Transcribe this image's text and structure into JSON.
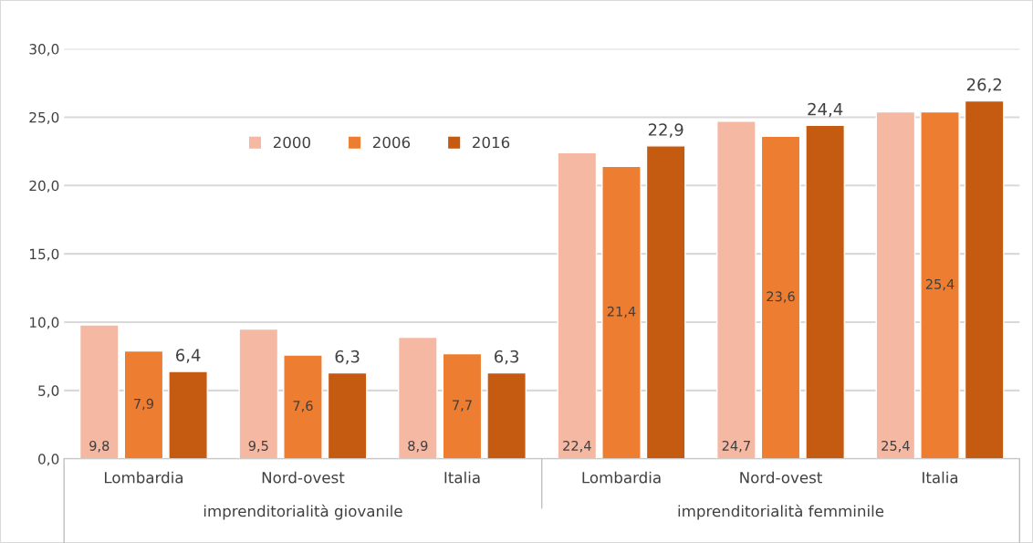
{
  "chart_data": {
    "type": "bar",
    "categories": [
      "Lombardia",
      "Nord-ovest",
      "Italia",
      "Lombardia",
      "Nord-ovest",
      "Italia"
    ],
    "series": [
      {
        "name": "2000",
        "color": "#f4b8a3",
        "values": [
          9.8,
          9.5,
          8.9,
          22.4,
          24.7,
          25.4
        ],
        "value_labels": [
          "9,8",
          "9,5",
          "8,9",
          "22,4",
          "24,7",
          "25,4"
        ]
      },
      {
        "name": "2006",
        "color": "#ed7d31",
        "values": [
          7.9,
          7.6,
          7.7,
          21.4,
          23.6,
          25.4
        ],
        "value_labels": [
          "7,9",
          "7,6",
          "7,7",
          "21,4",
          "23,6",
          "25,4"
        ]
      },
      {
        "name": "2016",
        "color": "#c55a11",
        "values": [
          6.4,
          6.3,
          6.3,
          22.9,
          24.4,
          26.2
        ],
        "value_labels": [
          "6,4",
          "6,3",
          "6,3",
          "22,9",
          "24,4",
          "26,2"
        ]
      }
    ],
    "annotations": [
      "imprenditorialità giovanile",
      "imprenditorialità femminile"
    ],
    "ylim": [
      0,
      30
    ],
    "yticks": [
      {
        "value": 0,
        "label": "0,0"
      },
      {
        "value": 5,
        "label": "5,0"
      },
      {
        "value": 10,
        "label": "10,0"
      },
      {
        "value": 15,
        "label": "15,0"
      },
      {
        "value": 20,
        "label": "20,0"
      },
      {
        "value": 25,
        "label": "25,0"
      },
      {
        "value": 30,
        "label": "30,0"
      }
    ],
    "grid": "y",
    "legend": "top left"
  }
}
